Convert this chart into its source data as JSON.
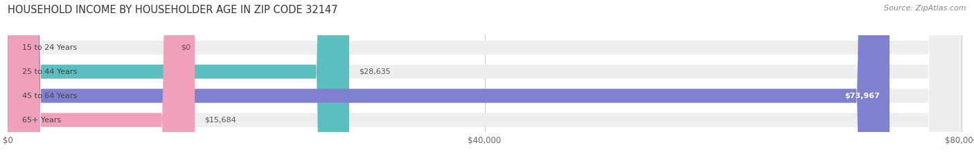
{
  "title": "HOUSEHOLD INCOME BY HOUSEHOLDER AGE IN ZIP CODE 32147",
  "source": "Source: ZipAtlas.com",
  "categories": [
    "15 to 24 Years",
    "25 to 44 Years",
    "45 to 64 Years",
    "65+ Years"
  ],
  "values": [
    0,
    28635,
    73967,
    15684
  ],
  "bar_colors": [
    "#c9a0c8",
    "#5bbfbf",
    "#8080d0",
    "#f0a0b8"
  ],
  "bar_bg_color": "#eeeeee",
  "label_colors": [
    "#888888",
    "#888888",
    "#ffffff",
    "#888888"
  ],
  "xlim": [
    0,
    80000
  ],
  "xticks": [
    0,
    40000,
    80000
  ],
  "xtick_labels": [
    "$0",
    "$40,000",
    "$80,000"
  ],
  "background_color": "#ffffff",
  "title_fontsize": 10.5,
  "bar_height": 0.58,
  "figsize": [
    14.06,
    2.33
  ],
  "dpi": 100
}
